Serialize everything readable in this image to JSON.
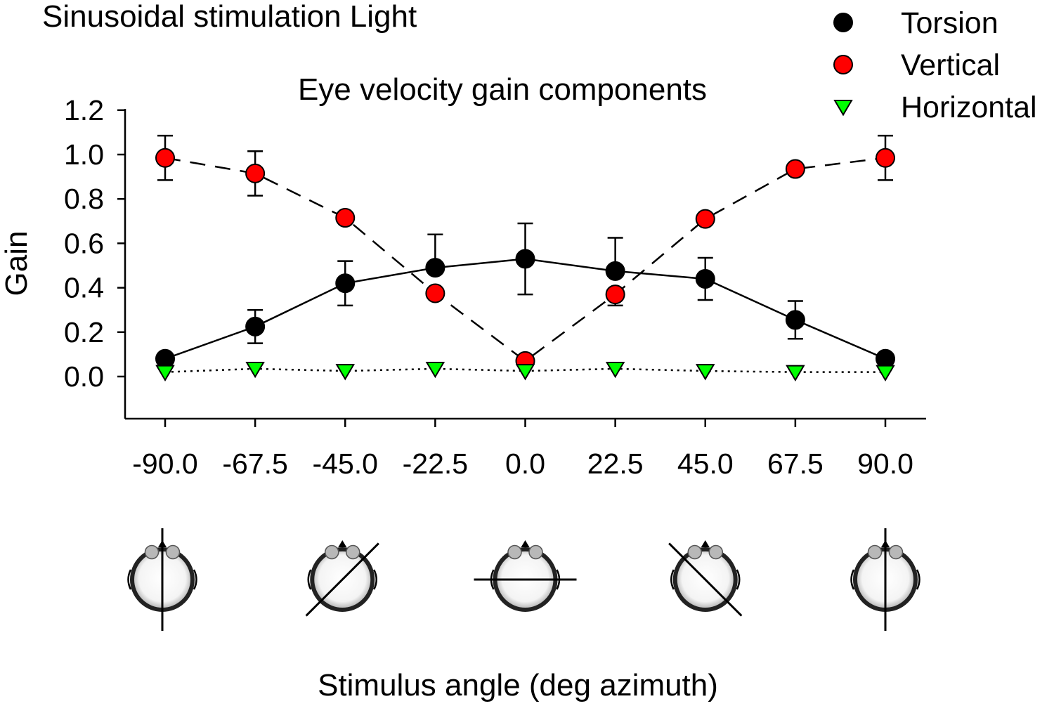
{
  "figure": {
    "main_title": "Sinusoidal stimulation Light",
    "subtitle": "Eye velocity gain components"
  },
  "chart_data": {
    "type": "line",
    "title": "Eye velocity gain components",
    "xlabel": "Stimulus angle (deg azimuth)",
    "ylabel": "Gain",
    "x": [
      -90.0,
      -67.5,
      -45.0,
      -22.5,
      0.0,
      22.5,
      45.0,
      67.5,
      90.0
    ],
    "x_tick_labels": [
      "-90.0",
      "-67.5",
      "-45.0",
      "-22.5",
      "0.0",
      "22.5",
      "45.0",
      "67.5",
      "90.0"
    ],
    "y_ticks": [
      0.0,
      0.2,
      0.4,
      0.6,
      0.8,
      1.0,
      1.2
    ],
    "y_tick_labels": [
      "0.0",
      "0.2",
      "0.4",
      "0.6",
      "0.8",
      "1.0",
      "1.2"
    ],
    "ylim": [
      -0.18,
      1.2
    ],
    "grid": false,
    "legend_position": "top-right",
    "series": [
      {
        "name": "Torsion",
        "marker": "circle",
        "line_style": "solid",
        "color": "#000000",
        "values": [
          0.08,
          0.225,
          0.42,
          0.49,
          0.53,
          0.475,
          0.44,
          0.255,
          0.08
        ],
        "error_up": [
          0.0,
          0.075,
          0.1,
          0.15,
          0.16,
          0.15,
          0.095,
          0.085,
          0.0
        ],
        "error_down": [
          0.0,
          0.075,
          0.1,
          0.0,
          0.16,
          0.0,
          0.095,
          0.085,
          0.0
        ]
      },
      {
        "name": "Vertical",
        "marker": "circle",
        "line_style": "dashed",
        "color": "#ff0000",
        "values": [
          0.985,
          0.915,
          0.715,
          0.375,
          0.07,
          0.37,
          0.71,
          0.935,
          0.985
        ],
        "error_up": [
          0.1,
          0.1,
          0.0,
          0.0,
          0.0,
          0.0,
          0.0,
          0.0,
          0.1
        ],
        "error_down": [
          0.1,
          0.1,
          0.0,
          0.0,
          0.0,
          0.05,
          0.0,
          0.0,
          0.1
        ]
      },
      {
        "name": "Horizontal",
        "marker": "triangle-down",
        "line_style": "dotted",
        "color": "#00ff00",
        "values": [
          0.02,
          0.035,
          0.025,
          0.035,
          0.025,
          0.035,
          0.025,
          0.02,
          0.02
        ],
        "error_up": [
          0,
          0,
          0,
          0,
          0,
          0,
          0,
          0,
          0
        ],
        "error_down": [
          0,
          0,
          0,
          0,
          0,
          0,
          0,
          0,
          0
        ]
      }
    ],
    "head_diagram_angles": [
      -90.0,
      -45.0,
      0.0,
      45.0,
      90.0
    ]
  }
}
